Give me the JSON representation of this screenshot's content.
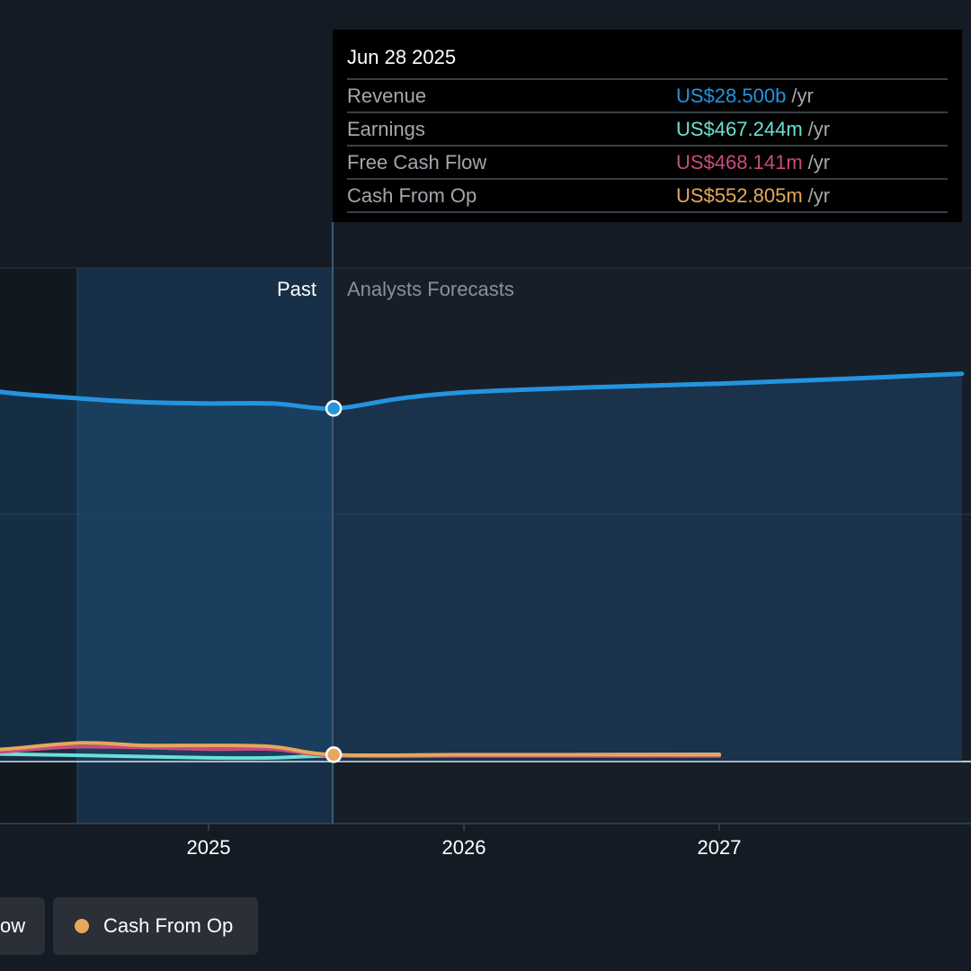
{
  "chart_data": {
    "type": "line",
    "x_ticks": [
      "2025",
      "2026",
      "2027"
    ],
    "regions": {
      "past_label": "Past",
      "forecast_label": "Analysts Forecasts"
    },
    "series": [
      {
        "name": "Revenue",
        "color": "#2394df",
        "points": [
          [
            2024.2,
            29.8
          ],
          [
            2024.5,
            29.3
          ],
          [
            2024.75,
            29.0
          ],
          [
            2025.0,
            28.9
          ],
          [
            2025.25,
            28.9
          ],
          [
            2025.49,
            28.5
          ],
          [
            2025.75,
            29.3
          ],
          [
            2026.0,
            29.8
          ],
          [
            2026.5,
            30.2
          ],
          [
            2027.0,
            30.5
          ],
          [
            2027.5,
            30.9
          ],
          [
            2027.95,
            31.3
          ]
        ]
      },
      {
        "name": "Earnings",
        "color": "#6de0d3",
        "points": [
          [
            2024.2,
            0.6
          ],
          [
            2024.5,
            0.5
          ],
          [
            2025.0,
            0.3
          ],
          [
            2025.25,
            0.3
          ],
          [
            2025.49,
            0.47
          ],
          [
            2026.0,
            0.5
          ],
          [
            2026.5,
            0.55
          ],
          [
            2027.0,
            0.58
          ]
        ]
      },
      {
        "name": "Free Cash Flow",
        "color": "#c94c7f",
        "points": [
          [
            2024.2,
            0.8
          ],
          [
            2024.5,
            1.2
          ],
          [
            2025.0,
            1.0
          ],
          [
            2025.25,
            1.0
          ],
          [
            2025.49,
            0.47
          ],
          [
            2026.0,
            0.45
          ],
          [
            2026.5,
            0.45
          ],
          [
            2027.0,
            0.45
          ]
        ]
      },
      {
        "name": "Cash From Op",
        "color": "#e6a85a",
        "points": [
          [
            2024.2,
            1.0
          ],
          [
            2024.5,
            1.5
          ],
          [
            2024.75,
            1.3
          ],
          [
            2025.0,
            1.3
          ],
          [
            2025.25,
            1.2
          ],
          [
            2025.49,
            0.55
          ],
          [
            2026.0,
            0.55
          ],
          [
            2026.5,
            0.55
          ],
          [
            2027.0,
            0.55
          ]
        ]
      }
    ],
    "highlight_date": 2025.49
  },
  "tooltip": {
    "date": "Jun 28 2025",
    "rows": [
      {
        "label": "Revenue",
        "value": "US$28.500b",
        "unit": "/yr",
        "color": "#2394df"
      },
      {
        "label": "Earnings",
        "value": "US$467.244m",
        "unit": "/yr",
        "color": "#6de0d3"
      },
      {
        "label": "Free Cash Flow",
        "value": "US$468.141m",
        "unit": "/yr",
        "color": "#c94c7f"
      },
      {
        "label": "Cash From Op",
        "value": "US$552.805m",
        "unit": "/yr",
        "color": "#e6a85a"
      }
    ]
  },
  "legend": [
    {
      "label": "ow",
      "color": "#c94c7f",
      "show_dot": false
    },
    {
      "label": "Cash From Op",
      "color": "#e6a85a",
      "show_dot": true
    }
  ]
}
